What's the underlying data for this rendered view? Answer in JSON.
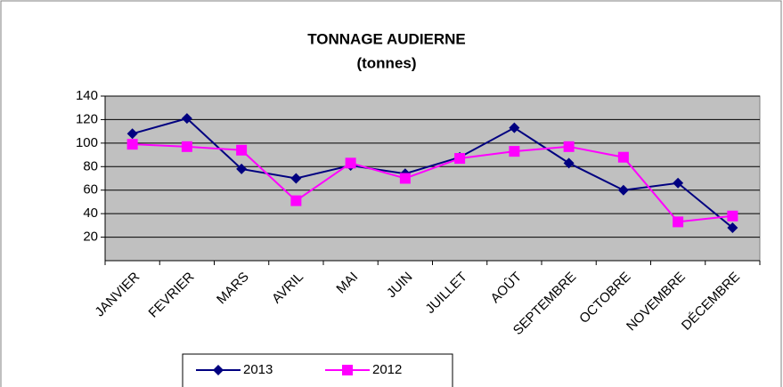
{
  "chart_data": {
    "type": "line",
    "title": "TONNAGE AUDIERNE",
    "subtitle": "(tonnes)",
    "categories": [
      "JANVIER",
      "FEVRIER",
      "MARS",
      "AVRIL",
      "MAI",
      "JUIN",
      "JUILLET",
      "AOÛT",
      "SEPTEMBRE",
      "OCTOBRE",
      "NOVEMBRE",
      "DÉCEMBRE"
    ],
    "series": [
      {
        "name": "2013",
        "color": "#000080",
        "marker": "diamond",
        "values": [
          108,
          121,
          78,
          70,
          81,
          74,
          88,
          113,
          83,
          60,
          66,
          28
        ]
      },
      {
        "name": "2012",
        "color": "#ff00ff",
        "marker": "square",
        "values": [
          99,
          97,
          94,
          51,
          83,
          70,
          87,
          93,
          97,
          88,
          33,
          38
        ]
      }
    ],
    "ylim": [
      0,
      140
    ],
    "yticks": [
      20,
      40,
      60,
      80,
      100,
      120,
      140
    ],
    "grid": true,
    "legend": "bottom",
    "plot_background": "#c0c0c0"
  }
}
